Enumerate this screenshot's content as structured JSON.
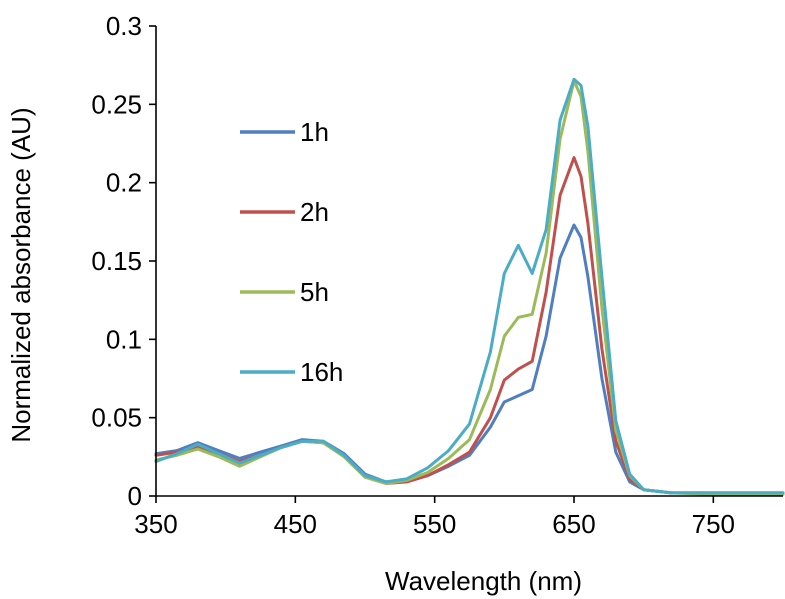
{
  "chart_data": {
    "type": "line",
    "title": "",
    "xlabel": "Wavelength (nm)",
    "ylabel": "Normalized absorbance (AU)",
    "xlim": [
      350,
      800
    ],
    "ylim": [
      0,
      0.3
    ],
    "x_ticks": [
      350,
      450,
      550,
      650,
      750
    ],
    "x_tick_labels": [
      "350",
      "450",
      "550",
      "650",
      "750"
    ],
    "y_ticks": [
      0,
      0.05,
      0.1,
      0.15,
      0.2,
      0.25,
      0.3
    ],
    "y_tick_labels": [
      "0",
      "0.05",
      "0.1",
      "0.15",
      "0.2",
      "0.25",
      "0.3"
    ],
    "grid": false,
    "legend_position": "left-center",
    "x": [
      350,
      365,
      380,
      395,
      410,
      425,
      440,
      455,
      470,
      485,
      500,
      515,
      530,
      545,
      560,
      575,
      590,
      600,
      610,
      620,
      630,
      640,
      650,
      655,
      660,
      670,
      680,
      690,
      700,
      720,
      750,
      800
    ],
    "series": [
      {
        "name": "1h",
        "color": "#4f7fc1",
        "values": [
          0.027,
          0.029,
          0.034,
          0.029,
          0.024,
          0.028,
          0.032,
          0.036,
          0.035,
          0.027,
          0.014,
          0.009,
          0.01,
          0.013,
          0.019,
          0.026,
          0.044,
          0.06,
          0.064,
          0.068,
          0.102,
          0.152,
          0.173,
          0.165,
          0.14,
          0.075,
          0.028,
          0.009,
          0.004,
          0.002,
          0.002,
          0.002
        ]
      },
      {
        "name": "2h",
        "color": "#c0504d",
        "values": [
          0.026,
          0.028,
          0.031,
          0.027,
          0.022,
          0.026,
          0.031,
          0.035,
          0.034,
          0.026,
          0.013,
          0.008,
          0.009,
          0.013,
          0.02,
          0.028,
          0.05,
          0.074,
          0.081,
          0.086,
          0.13,
          0.192,
          0.216,
          0.204,
          0.174,
          0.094,
          0.035,
          0.011,
          0.004,
          0.002,
          0.002,
          0.002
        ]
      },
      {
        "name": "5h",
        "color": "#9bbb59",
        "values": [
          0.023,
          0.026,
          0.03,
          0.025,
          0.019,
          0.025,
          0.031,
          0.035,
          0.034,
          0.025,
          0.012,
          0.008,
          0.01,
          0.015,
          0.024,
          0.036,
          0.068,
          0.102,
          0.114,
          0.116,
          0.155,
          0.228,
          0.265,
          0.255,
          0.22,
          0.12,
          0.042,
          0.013,
          0.004,
          0.002,
          0.001,
          0.001
        ]
      },
      {
        "name": "16h",
        "color": "#4bacc6",
        "values": [
          0.022,
          0.027,
          0.033,
          0.027,
          0.021,
          0.026,
          0.031,
          0.035,
          0.035,
          0.026,
          0.013,
          0.009,
          0.011,
          0.018,
          0.029,
          0.046,
          0.092,
          0.142,
          0.16,
          0.142,
          0.17,
          0.24,
          0.266,
          0.262,
          0.236,
          0.14,
          0.048,
          0.014,
          0.004,
          0.002,
          0.002,
          0.002
        ]
      }
    ]
  }
}
